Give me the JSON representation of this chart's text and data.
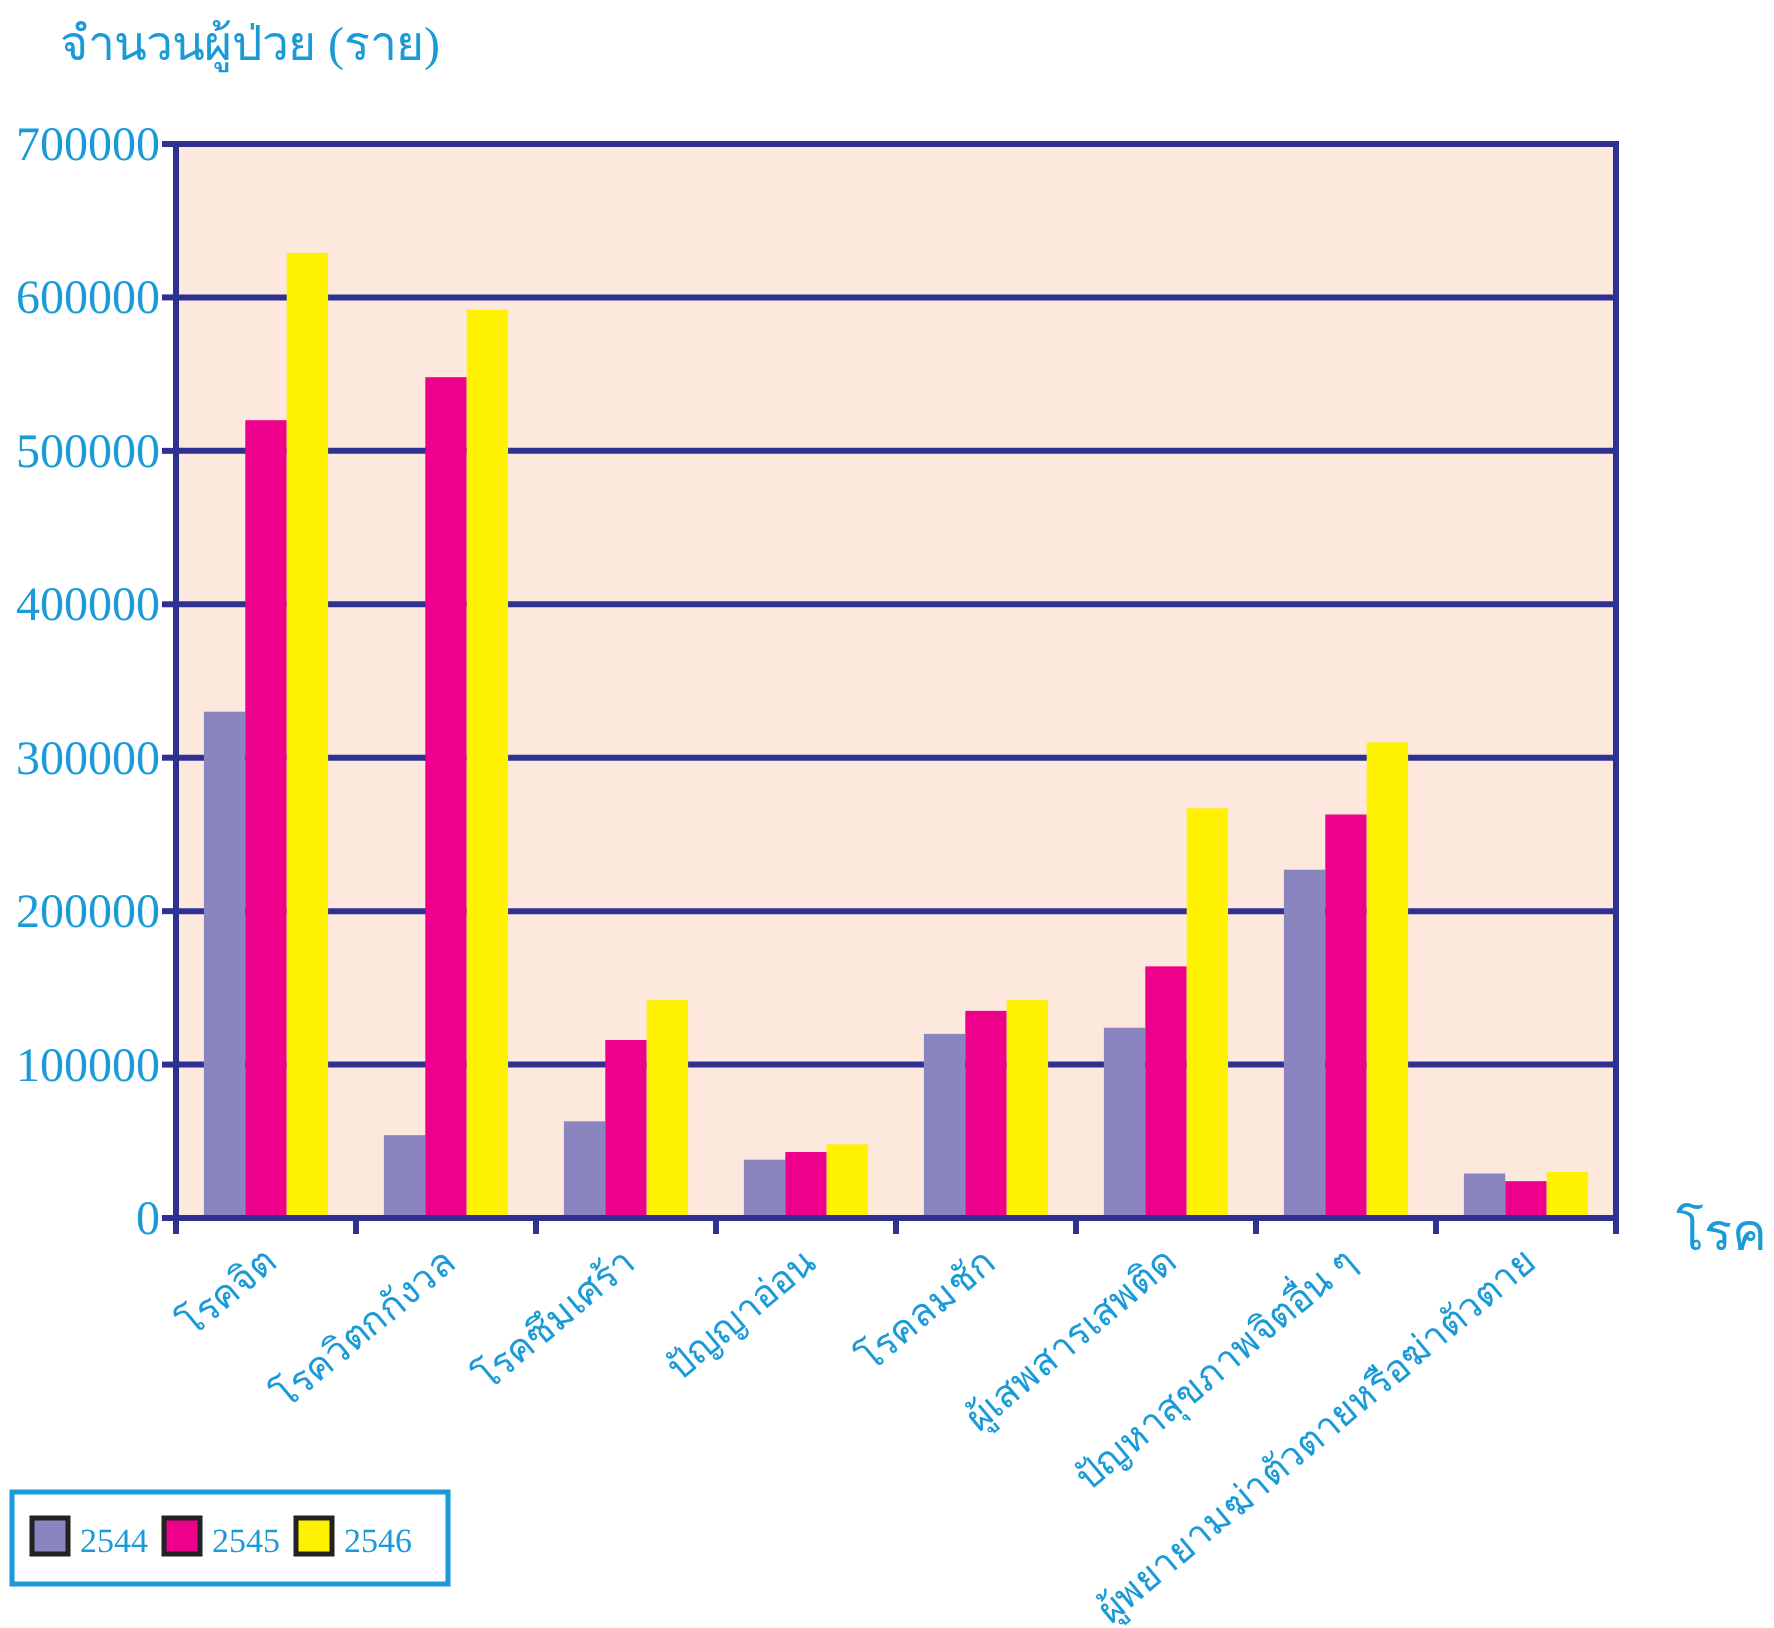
{
  "chart_data": {
    "type": "bar",
    "ylabel": "จำนวนผู้ป่วย (ราย)",
    "xlabel": "โรค",
    "categories": [
      "โรคจิต",
      "โรควิตกกังวล",
      "โรคซึมเศร้า",
      "ปัญญาอ่อน",
      "โรคลมชัก",
      "ผู้เสพสารเสพติด",
      "ปัญหาสุขภาพจิตอื่น ๆ",
      "ผู้พยายามฆ่าตัวตายหรือฆ่าตัวตาย"
    ],
    "series": [
      {
        "name": "2544",
        "color": "#8a84bf",
        "values": [
          330000,
          54000,
          63000,
          38000,
          120000,
          124000,
          227000,
          29000
        ]
      },
      {
        "name": "2545",
        "color": "#ec008c",
        "values": [
          520000,
          548000,
          116000,
          43000,
          135000,
          164000,
          263000,
          24000
        ]
      },
      {
        "name": "2546",
        "color": "#fff200",
        "values": [
          629000,
          592000,
          142000,
          48000,
          142000,
          267000,
          310000,
          30000
        ]
      }
    ],
    "ylim": [
      0,
      700000
    ],
    "yticks": [
      0,
      100000,
      200000,
      300000,
      400000,
      500000,
      600000,
      700000
    ],
    "grid": "y",
    "legend": "bottom left"
  }
}
